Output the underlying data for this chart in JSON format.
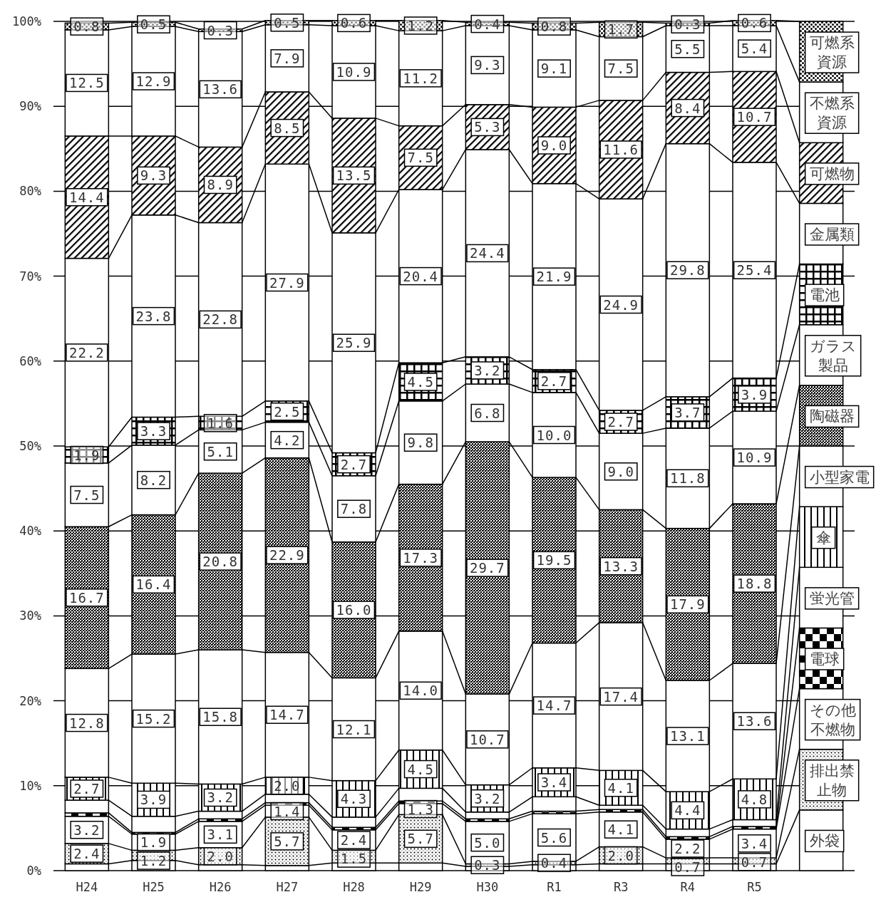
{
  "chart_data": {
    "type": "bar",
    "stacked": true,
    "categories": [
      "H24",
      "H25",
      "H26",
      "H27",
      "H28",
      "H29",
      "H30",
      "R1",
      "R3",
      "R4",
      "R5"
    ],
    "ylim": [
      0,
      100
    ],
    "yticks": [
      {
        "value": 0,
        "label": "0%"
      },
      {
        "value": 10,
        "label": "10%"
      },
      {
        "value": 20,
        "label": "20%"
      },
      {
        "value": 30,
        "label": "30%"
      },
      {
        "value": 40,
        "label": "40%"
      },
      {
        "value": 50,
        "label": "50%"
      },
      {
        "value": 60,
        "label": "60%"
      },
      {
        "value": 70,
        "label": "70%"
      },
      {
        "value": 80,
        "label": "80%"
      },
      {
        "value": 90,
        "label": "90%"
      },
      {
        "value": 100,
        "label": "100%"
      }
    ],
    "grid": "y",
    "legend": "right",
    "series": [
      {
        "name": "外袋",
        "color": "#ffffff",
        "values": [
          0.8,
          1.2,
          0.7,
          0.6,
          0.9,
          0.9,
          0.5,
          0.7,
          0.8,
          0.8,
          0.8
        ]
      },
      {
        "name": "排出禁止物",
        "color": "#000000",
        "values": [
          2.4,
          1.2,
          2.0,
          5.7,
          1.5,
          5.7,
          0.3,
          0.4,
          2.0,
          0.7,
          0.7
        ],
        "value_labels": [
          "2.4",
          "1.2",
          "2.0",
          "5.7",
          "1.5",
          "5.7",
          "0.3",
          "0.4",
          "2.0",
          "0.7",
          "0.7"
        ]
      },
      {
        "name": "その他不燃物",
        "color": "#ffffff",
        "values": [
          3.2,
          1.9,
          3.1,
          1.4,
          2.4,
          1.3,
          5.0,
          5.6,
          4.1,
          2.2,
          3.4
        ],
        "value_labels": [
          "3.2",
          "1.9",
          "3.1",
          "1.4",
          "2.4",
          "1.3",
          "5.0",
          "5.6",
          "4.1",
          "2.2",
          "3.4"
        ]
      },
      {
        "name": "電球",
        "color": "#000000",
        "values": [
          0.4,
          0.2,
          0.3,
          0.3,
          0.3,
          0.3,
          0.3,
          0.3,
          0.3,
          0.3,
          0.3
        ]
      },
      {
        "name": "蛍光管",
        "color": "#ffffff",
        "values": [
          1.5,
          1.9,
          0.9,
          1.0,
          1.2,
          1.5,
          0.8,
          1.7,
          0.5,
          0.9,
          0.8
        ]
      },
      {
        "name": "傘",
        "color": "#000000",
        "values": [
          2.7,
          3.9,
          3.2,
          2.0,
          4.3,
          4.5,
          3.2,
          3.4,
          4.1,
          4.4,
          4.8
        ],
        "value_labels": [
          "2.7",
          "3.9",
          "3.2",
          "2.0",
          "4.3",
          "4.5",
          "3.2",
          "3.4",
          "4.1",
          "4.4",
          "4.8"
        ]
      },
      {
        "name": "小型家電",
        "color": "#ffffff",
        "values": [
          12.8,
          15.2,
          15.8,
          14.7,
          12.1,
          14.0,
          10.7,
          14.7,
          17.4,
          13.1,
          13.6
        ],
        "value_labels": [
          "12.8",
          "15.2",
          "15.8",
          "14.7",
          "12.1",
          "14.0",
          "10.7",
          "14.7",
          "17.4",
          "13.1",
          "13.6"
        ]
      },
      {
        "name": "陶磁器",
        "color": "#000000",
        "values": [
          16.7,
          16.4,
          20.8,
          22.9,
          16.0,
          17.3,
          29.7,
          19.5,
          13.3,
          17.9,
          18.8
        ],
        "value_labels": [
          "16.7",
          "16.4",
          "20.8",
          "22.9",
          "16.0",
          "17.3",
          "29.7",
          "19.5",
          "13.3",
          "17.9",
          "18.8"
        ]
      },
      {
        "name": "ガラス製品",
        "color": "#ffffff",
        "values": [
          7.5,
          8.2,
          5.1,
          4.2,
          7.8,
          9.8,
          6.8,
          10.0,
          9.0,
          11.8,
          10.9
        ],
        "value_labels": [
          "7.5",
          "8.2",
          "5.1",
          "4.2",
          "7.8",
          "9.8",
          "6.8",
          "10.0",
          "9.0",
          "11.8",
          "10.9"
        ]
      },
      {
        "name": "電池",
        "color": "#000000",
        "values": [
          1.9,
          3.3,
          1.6,
          2.5,
          2.7,
          4.5,
          3.2,
          2.7,
          2.7,
          3.7,
          3.9
        ],
        "value_labels": [
          "1.9",
          "3.3",
          "1.6",
          "2.5",
          "2.7",
          "4.5",
          "3.2",
          "2.7",
          "2.7",
          "3.7",
          "3.9"
        ]
      },
      {
        "name": "金属類",
        "color": "#ffffff",
        "values": [
          22.2,
          23.8,
          22.8,
          27.9,
          25.9,
          20.4,
          24.4,
          21.9,
          24.9,
          29.8,
          25.4
        ],
        "value_labels": [
          "22.2",
          "23.8",
          "22.8",
          "27.9",
          "25.9",
          "20.4",
          "24.4",
          "21.9",
          "24.9",
          "29.8",
          "25.4"
        ]
      },
      {
        "name": "可燃物",
        "color": "#000000",
        "values": [
          14.4,
          9.3,
          8.9,
          8.5,
          13.5,
          7.5,
          5.3,
          9.0,
          11.6,
          8.4,
          10.7
        ],
        "value_labels": [
          "14.4",
          "9.3",
          "8.9",
          "8.5",
          "13.5",
          "7.5",
          "5.3",
          "9.0",
          "11.6",
          "8.4",
          "10.7"
        ]
      },
      {
        "name": "不燃系資源",
        "color": "#ffffff",
        "values": [
          12.5,
          12.9,
          13.6,
          7.9,
          10.9,
          11.2,
          9.3,
          9.1,
          7.5,
          5.5,
          5.4
        ],
        "value_labels": [
          "12.5",
          "12.9",
          "13.6",
          "7.9",
          "10.9",
          "11.2",
          "9.3",
          "9.1",
          "7.5",
          "5.5",
          "5.4"
        ]
      },
      {
        "name": "可燃系資源",
        "color": "#000000",
        "values": [
          0.8,
          0.5,
          0.3,
          0.5,
          0.6,
          1.2,
          0.4,
          0.8,
          1.7,
          0.3,
          0.6
        ],
        "value_labels": [
          "0.8",
          "0.5",
          "0.3",
          "0.5",
          "0.6",
          "1.2",
          "0.4",
          "0.8",
          "1.7",
          "0.3",
          "0.6"
        ]
      }
    ]
  }
}
